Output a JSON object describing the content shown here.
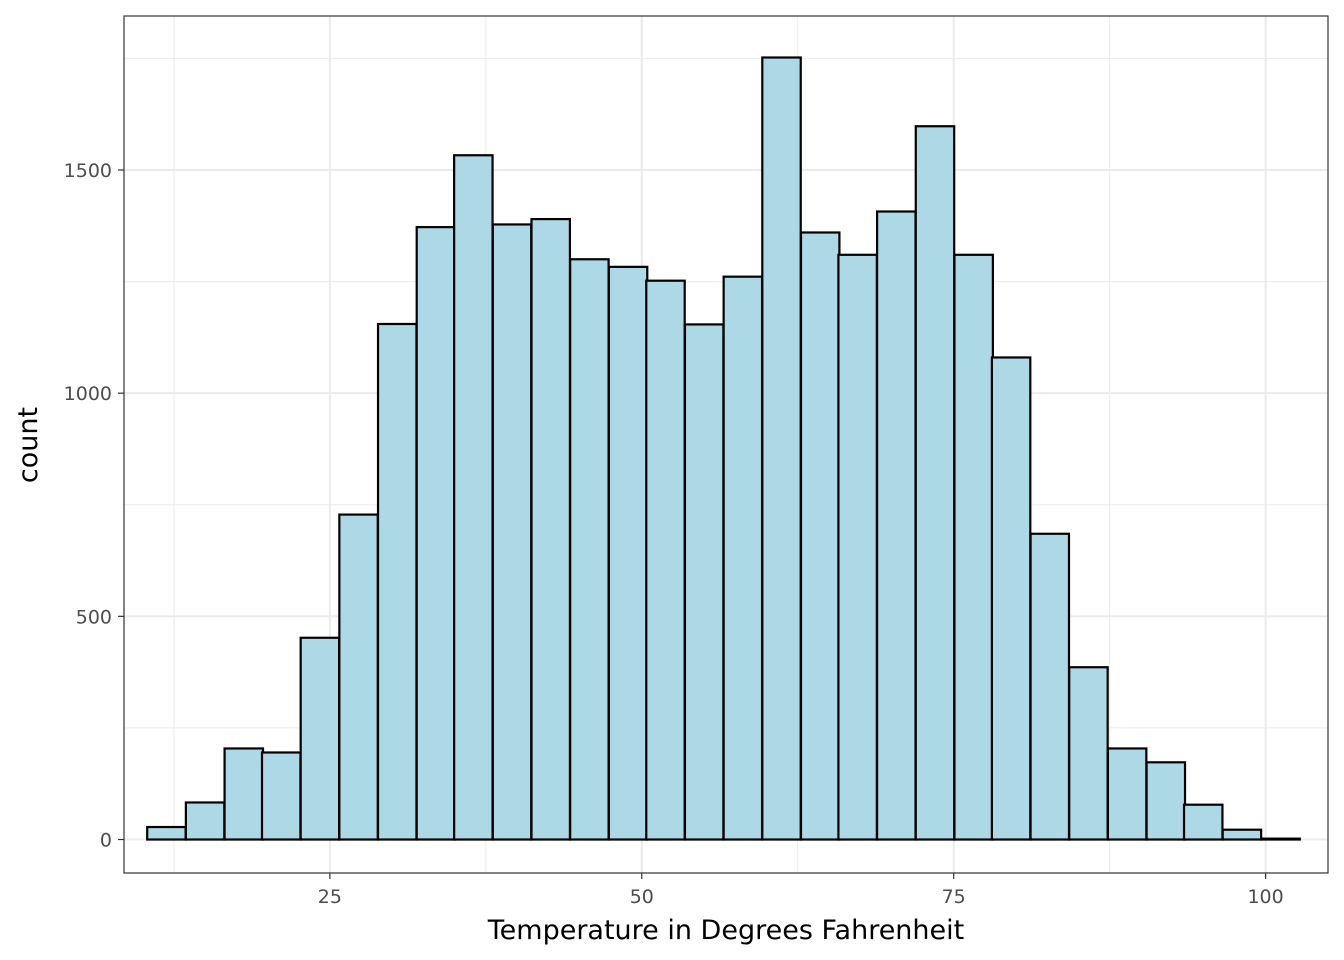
{
  "chart_data": {
    "type": "bar",
    "subtype": "histogram",
    "title": "",
    "xlabel": "Temperature in Degrees Fahrenheit",
    "ylabel": "count",
    "xlim": [
      8.5,
      105
    ],
    "ylim": [
      -75,
      1845
    ],
    "x_ticks": [
      25,
      50,
      75,
      100
    ],
    "y_ticks": [
      0,
      500,
      1000,
      1500
    ],
    "x_minor_ticks": [
      12.5,
      37.5,
      62.5,
      87.5
    ],
    "y_minor_ticks": [
      250,
      750,
      1250,
      1750
    ],
    "grid": true,
    "legend": "none",
    "bin_width": 3.08,
    "bin_centers": [
      11.9,
      15.0,
      18.1,
      21.1,
      24.2,
      27.3,
      30.4,
      33.5,
      36.5,
      39.6,
      42.7,
      45.8,
      48.9,
      51.9,
      55.0,
      58.1,
      61.2,
      64.3,
      67.3,
      70.4,
      73.5,
      76.6,
      79.6,
      82.7,
      85.8,
      88.9,
      92.0,
      95.0,
      98.1,
      101.2
    ],
    "values": [
      28,
      83,
      204,
      195,
      452,
      728,
      1155,
      1372,
      1533,
      1378,
      1390,
      1300,
      1283,
      1252,
      1154,
      1261,
      1752,
      1360,
      1310,
      1407,
      1598,
      1310,
      1080,
      685,
      386,
      204,
      173,
      78,
      22,
      2
    ],
    "fill_color": "#add8e6",
    "stroke_color": "#000000",
    "panel_border_color": "#333333",
    "grid_color": "#ebebeb"
  }
}
